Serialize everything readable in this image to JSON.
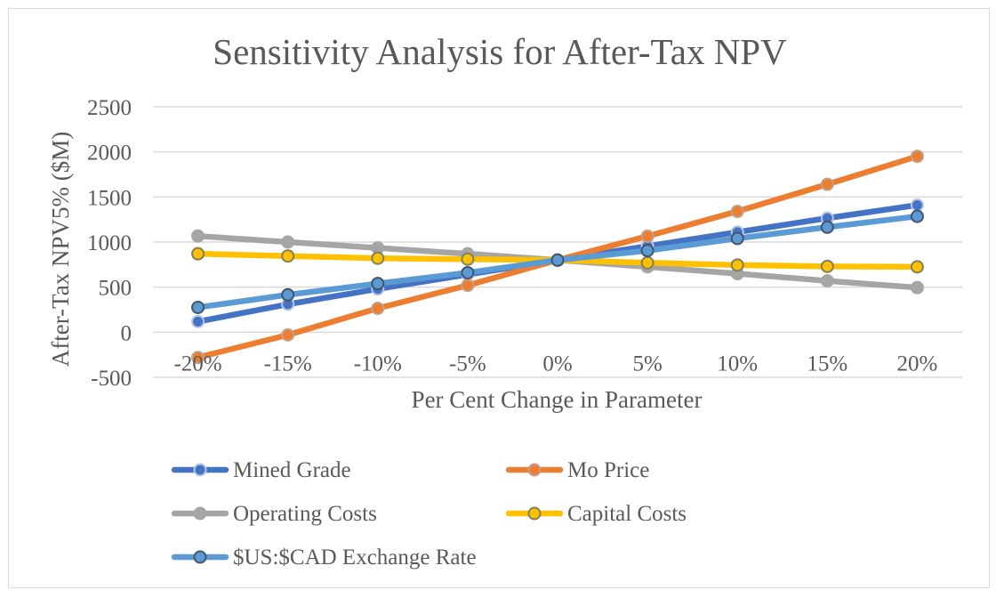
{
  "chart_data": {
    "type": "line",
    "title": "Sensitivity Analysis for After-Tax NPV",
    "xlabel": "Per Cent Change in Parameter",
    "ylabel": "After-Tax NPV5% ($M)",
    "ylim": [
      -500,
      2500
    ],
    "ytick_step": 500,
    "yticks": [
      "2500",
      "2000",
      "1500",
      "1000",
      "500",
      "0",
      "-500"
    ],
    "categories": [
      "-20%",
      "-15%",
      "-10%",
      "-5%",
      "0%",
      "5%",
      "10%",
      "15%",
      "20%"
    ],
    "grid": true,
    "legend_position": "bottom",
    "series": [
      {
        "name": "Mined Grade",
        "color": "#4472c4",
        "marker_edge": "#b4c7e7",
        "values": [
          118,
          310,
          480,
          640,
          800,
          955,
          1110,
          1265,
          1410
        ]
      },
      {
        "name": "Mo Price",
        "color": "#ed7d31",
        "marker_edge": "#bfa18c",
        "values": [
          -280,
          -30,
          265,
          520,
          800,
          1065,
          1340,
          1640,
          1950
        ]
      },
      {
        "name": "Operating Costs",
        "color": "#a5a5a5",
        "marker_edge": "#a5a5a5",
        "values": [
          1067,
          1000,
          935,
          870,
          800,
          725,
          650,
          570,
          495
        ]
      },
      {
        "name": "Capital Costs",
        "color": "#ffc000",
        "marker_edge": "#7f7f5f",
        "values": [
          870,
          845,
          820,
          810,
          800,
          770,
          745,
          730,
          725
        ]
      },
      {
        "name": "$US:$CAD Exchange Rate",
        "color": "#5b9bd5",
        "marker_edge": "#44546a",
        "values": [
          275,
          415,
          540,
          660,
          800,
          905,
          1040,
          1165,
          1285
        ]
      }
    ]
  }
}
